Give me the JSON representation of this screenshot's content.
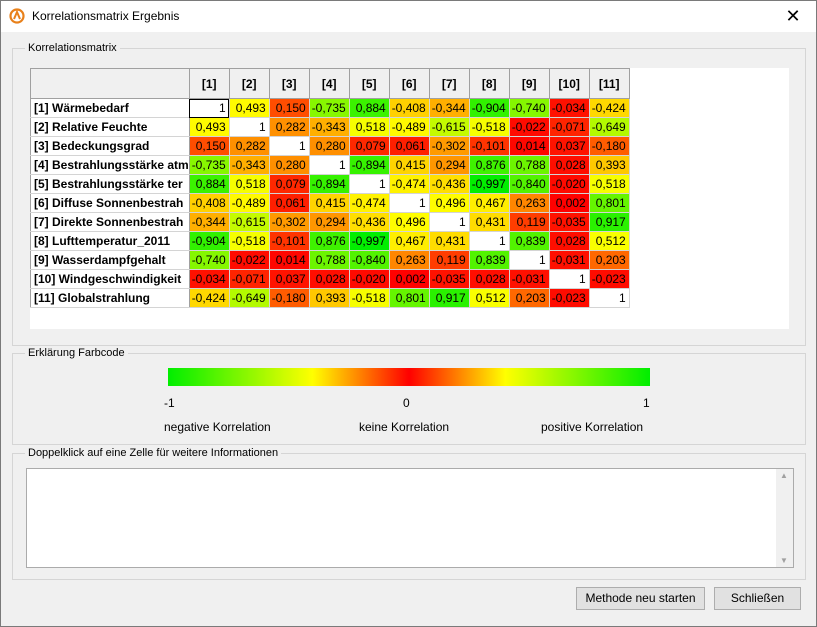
{
  "window": {
    "title": "Korrelationsmatrix Ergebnis",
    "close_glyph": "✕",
    "app_icon": "app-logo-icon"
  },
  "matrix_group": {
    "legend": "Korrelationsmatrix",
    "col_headers": [
      "[1]",
      "[2]",
      "[3]",
      "[4]",
      "[5]",
      "[6]",
      "[7]",
      "[8]",
      "[9]",
      "[10]",
      "[11]"
    ],
    "row_labels": [
      "[1] Wärmebedarf",
      "[2] Relative Feuchte",
      "[3] Bedeckungsgrad",
      "[4] Bestrahlungsstärke atm",
      "[5] Bestrahlungsstärke ter",
      "[6] Diffuse Sonnenbestrah",
      "[7] Direkte Sonnenbestrah",
      "[8] Lufttemperatur_2011",
      "[9] Wasserdampfgehalt",
      "[10] Windgeschwindigkeit",
      "[11] Globalstrahlung"
    ],
    "rows": [
      [
        "1",
        "0,493",
        "0,150",
        "-0,735",
        "0,884",
        "-0,408",
        "-0,344",
        "-0,904",
        "-0,740",
        "-0,034",
        "-0,424"
      ],
      [
        "0,493",
        "1",
        "0,282",
        "-0,343",
        "0,518",
        "-0,489",
        "-0,615",
        "-0,518",
        "-0,022",
        "-0,071",
        "-0,649"
      ],
      [
        "0,150",
        "0,282",
        "1",
        "0,280",
        "0,079",
        "0,061",
        "-0,302",
        "-0,101",
        "0,014",
        "0,037",
        "-0,180"
      ],
      [
        "-0,735",
        "-0,343",
        "0,280",
        "1",
        "-0,894",
        "0,415",
        "0,294",
        "0,876",
        "0,788",
        "0,028",
        "0,393"
      ],
      [
        "0,884",
        "0,518",
        "0,079",
        "-0,894",
        "1",
        "-0,474",
        "-0,436",
        "-0,997",
        "-0,840",
        "-0,020",
        "-0,518"
      ],
      [
        "-0,408",
        "-0,489",
        "0,061",
        "0,415",
        "-0,474",
        "1",
        "0,496",
        "0,467",
        "0,263",
        "0,002",
        "0,801"
      ],
      [
        "-0,344",
        "-0,615",
        "-0,302",
        "0,294",
        "-0,436",
        "0,496",
        "1",
        "0,431",
        "0,119",
        "-0,035",
        "0,917"
      ],
      [
        "-0,904",
        "-0,518",
        "-0,101",
        "0,876",
        "-0,997",
        "0,467",
        "0,431",
        "1",
        "0,839",
        "0,028",
        "0,512"
      ],
      [
        "-0,740",
        "-0,022",
        "0,014",
        "0,788",
        "-0,840",
        "0,263",
        "0,119",
        "0,839",
        "1",
        "-0,031",
        "0,203"
      ],
      [
        "-0,034",
        "-0,071",
        "0,037",
        "0,028",
        "-0,020",
        "0,002",
        "-0,035",
        "0,028",
        "-0,031",
        "1",
        "-0,023"
      ],
      [
        "-0,424",
        "-0,649",
        "-0,180",
        "0,393",
        "-0,518",
        "0,801",
        "0,917",
        "0,512",
        "0,203",
        "-0,023",
        "1"
      ]
    ]
  },
  "legend_group": {
    "legend": "Erklärung Farbcode",
    "min_label": "-1",
    "mid_label": "0",
    "max_label": "1",
    "neg_text": "negative Korrelation",
    "zero_text": "keine Korrelation",
    "pos_text": "positive Korrelation",
    "colors": {
      "strong": "#00ee00",
      "medium": "#ffff00",
      "none": "#ff0000",
      "diagonal": "#ffffff"
    }
  },
  "info_group": {
    "legend": "Doppelklick auf eine Zelle für weitere Informationen",
    "text": ""
  },
  "buttons": {
    "restart": "Methode neu starten",
    "close": "Schließen"
  }
}
